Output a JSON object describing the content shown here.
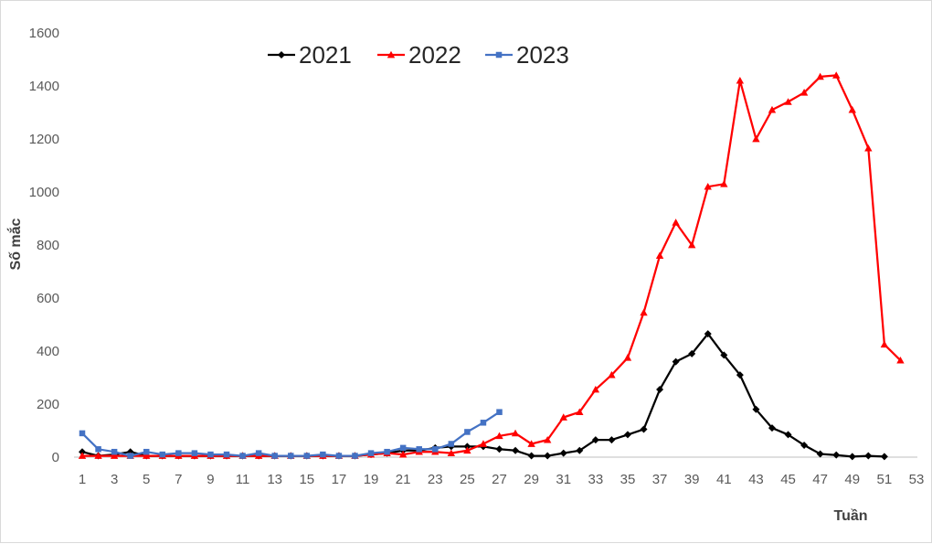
{
  "chart_data": {
    "type": "line",
    "title": "",
    "xlabel": "Tuần",
    "ylabel": "Số mắc",
    "xlim": [
      1,
      53
    ],
    "ylim": [
      0,
      1600
    ],
    "x_ticks": [
      1,
      3,
      5,
      7,
      9,
      11,
      13,
      15,
      17,
      19,
      21,
      23,
      25,
      27,
      29,
      31,
      33,
      35,
      37,
      39,
      41,
      43,
      45,
      47,
      49,
      51,
      53
    ],
    "y_ticks": [
      0,
      200,
      400,
      600,
      800,
      1000,
      1200,
      1400,
      1600
    ],
    "grid": false,
    "legend_position": "top",
    "series": [
      {
        "name": "2021",
        "color": "#000000",
        "marker": "diamond",
        "x": [
          1,
          2,
          3,
          4,
          5,
          6,
          7,
          8,
          9,
          10,
          11,
          12,
          13,
          14,
          15,
          16,
          17,
          18,
          19,
          20,
          21,
          22,
          23,
          24,
          25,
          26,
          27,
          28,
          29,
          30,
          31,
          32,
          33,
          34,
          35,
          36,
          37,
          38,
          39,
          40,
          41,
          42,
          43,
          44,
          45,
          46,
          47,
          48,
          49,
          50,
          51
        ],
        "y": [
          20,
          5,
          10,
          20,
          5,
          5,
          5,
          5,
          5,
          5,
          5,
          5,
          5,
          5,
          5,
          5,
          5,
          5,
          10,
          15,
          25,
          25,
          35,
          40,
          40,
          40,
          30,
          25,
          5,
          5,
          15,
          25,
          65,
          65,
          85,
          105,
          255,
          360,
          390,
          465,
          385,
          310,
          180,
          110,
          85,
          45,
          12,
          8,
          2,
          5,
          2
        ]
      },
      {
        "name": "2022",
        "color": "#ff0000",
        "marker": "triangle",
        "x": [
          1,
          2,
          3,
          4,
          5,
          6,
          7,
          8,
          9,
          10,
          11,
          12,
          13,
          14,
          15,
          16,
          17,
          18,
          19,
          20,
          21,
          22,
          23,
          24,
          25,
          26,
          27,
          28,
          29,
          30,
          31,
          32,
          33,
          34,
          35,
          36,
          37,
          38,
          39,
          40,
          41,
          42,
          43,
          44,
          45,
          46,
          47,
          48,
          49,
          50,
          51,
          52
        ],
        "y": [
          5,
          5,
          5,
          5,
          5,
          5,
          5,
          5,
          5,
          5,
          5,
          5,
          5,
          5,
          5,
          5,
          5,
          5,
          10,
          15,
          10,
          20,
          20,
          15,
          25,
          50,
          80,
          90,
          50,
          65,
          150,
          170,
          255,
          310,
          375,
          545,
          760,
          885,
          800,
          1020,
          1030,
          1420,
          1200,
          1310,
          1340,
          1375,
          1435,
          1440,
          1310,
          1165,
          425,
          365
        ]
      },
      {
        "name": "2023",
        "color": "#4472c4",
        "marker": "square",
        "x": [
          1,
          2,
          3,
          4,
          5,
          6,
          7,
          8,
          9,
          10,
          11,
          12,
          13,
          14,
          15,
          16,
          17,
          18,
          19,
          20,
          21,
          22,
          23,
          24,
          25,
          26,
          27
        ],
        "y": [
          90,
          30,
          20,
          5,
          20,
          10,
          15,
          15,
          10,
          10,
          5,
          15,
          5,
          5,
          5,
          10,
          5,
          5,
          15,
          20,
          35,
          30,
          30,
          50,
          95,
          130,
          170
        ]
      }
    ]
  }
}
